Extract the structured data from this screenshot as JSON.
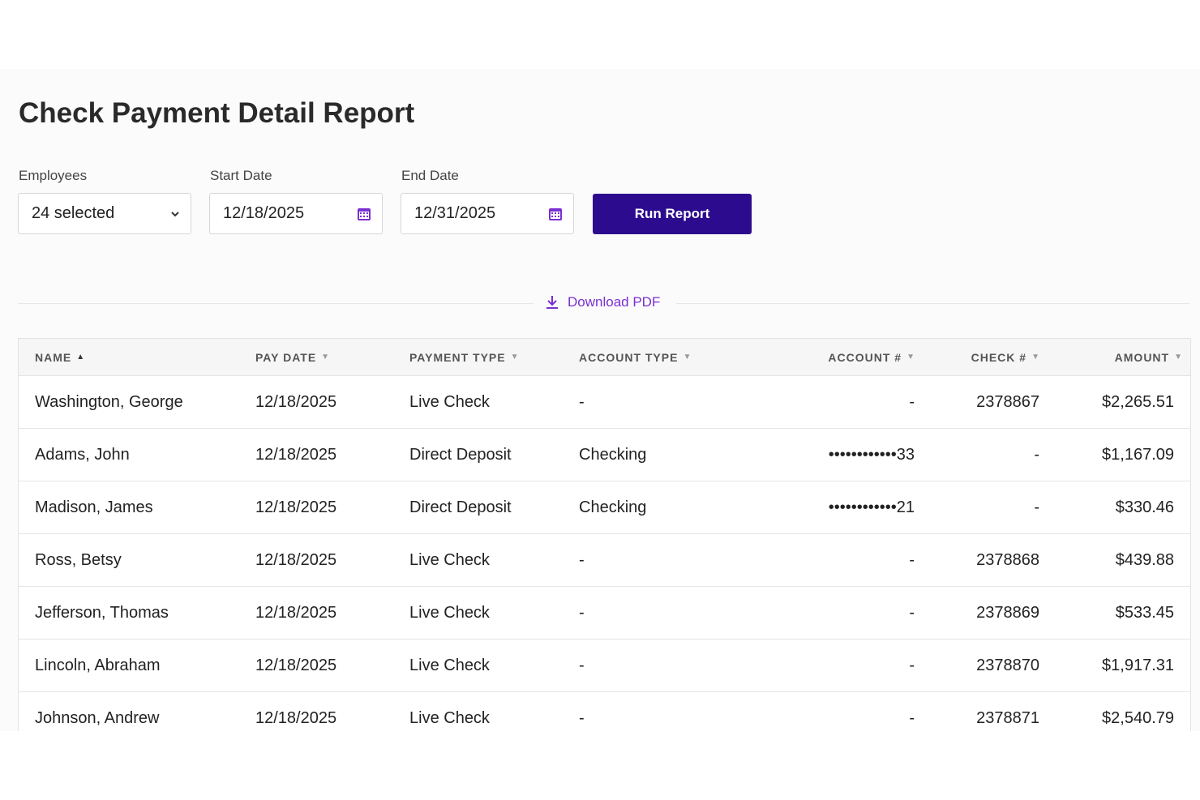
{
  "header": {
    "title": "Check Payment Detail Report"
  },
  "filters": {
    "employees": {
      "label": "Employees",
      "value": "24 selected"
    },
    "start_date": {
      "label": "Start Date",
      "value": "12/18/2025"
    },
    "end_date": {
      "label": "End Date",
      "value": "12/31/2025"
    },
    "run_button": "Run Report"
  },
  "download": "Download PDF",
  "table": {
    "columns": [
      "NAME",
      "PAY DATE",
      "PAYMENT TYPE",
      "ACCOUNT TYPE",
      "ACCOUNT #",
      "CHECK #",
      "AMOUNT"
    ],
    "rows": [
      [
        "Washington, George",
        "12/18/2025",
        "Live Check",
        "-",
        "-",
        "2378867",
        "$2,265.51"
      ],
      [
        "Adams, John",
        "12/18/2025",
        "Direct Deposit",
        "Checking",
        "••••••••••••33",
        "-",
        "$1,167.09"
      ],
      [
        "Madison, James",
        "12/18/2025",
        "Direct Deposit",
        "Checking",
        "••••••••••••21",
        "-",
        "$330.46"
      ],
      [
        "Ross, Betsy",
        "12/18/2025",
        "Live Check",
        "-",
        "-",
        "2378868",
        "$439.88"
      ],
      [
        "Jefferson, Thomas",
        "12/18/2025",
        "Live Check",
        "-",
        "-",
        "2378869",
        "$533.45"
      ],
      [
        "Lincoln, Abraham",
        "12/18/2025",
        "Live Check",
        "-",
        "-",
        "2378870",
        "$1,917.31"
      ],
      [
        "Johnson, Andrew",
        "12/18/2025",
        "Live Check",
        "-",
        "-",
        "2378871",
        "$2,540.79"
      ]
    ]
  }
}
